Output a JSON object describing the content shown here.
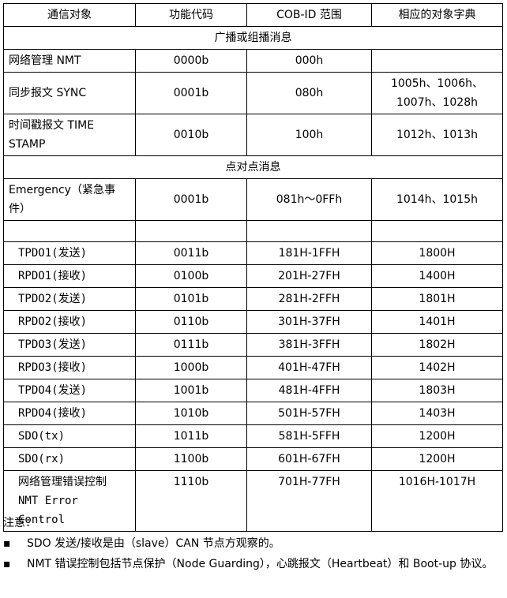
{
  "table": {
    "header": [
      "通信对象",
      "功能代码",
      "COB-ID 范围",
      "相应的对象字典"
    ],
    "sections": [
      "广播或组播消息",
      "点对点消息"
    ],
    "rows": [
      [
        "网络管理 NMT",
        "0000b",
        "000h",
        null
      ],
      [
        "同步报文 SYNC",
        "0001b",
        "080h",
        "1005h、1006h、1007h、1028h"
      ],
      [
        "时间戳报文 TIME STAMP",
        "0010b",
        "100h",
        "1012h、1013h"
      ],
      [
        "Emergency（紧急事件）",
        "0001b",
        "081h～0FFh",
        "1014h、1015h"
      ],
      [
        "TPDO1(发送)",
        "0011b",
        "181H-1FFH",
        "1800H"
      ],
      [
        "RPDO1(接收)",
        "0100b",
        "201H-27FH",
        "1400H"
      ],
      [
        "TPDO2(发送)",
        "0101b",
        "281H-2FFH",
        "1801H"
      ],
      [
        "RPDO2(接收)",
        "0110b",
        "301H-37FH",
        "1401H"
      ],
      [
        "TPDO3(发送)",
        "0111b",
        "381H-3FFH",
        "1802H"
      ],
      [
        "RPDO3(接收)",
        "1000b",
        "401H-47FH",
        "1402H"
      ],
      [
        "TPDO4(发送)",
        "1001b",
        "481H-4FFH",
        "1803H"
      ],
      [
        "RPDO4(接收)",
        "1010b",
        "501H-57FH",
        "1403H"
      ],
      [
        "SDO(tx)",
        "1011b",
        "581H-5FFH",
        "1200H"
      ],
      [
        "SDO(rx)",
        "1100b",
        "601H-67FH",
        "1200H"
      ],
      [
        "网络管理错误控制 NMT Error Control",
        "1110b",
        "701H-77FH",
        "1016H-1017H"
      ]
    ]
  },
  "notes": {
    "title": "注意：",
    "items": [
      "SDO 发送/接收是由（slave）CAN 节点方观察的。",
      "NMT 错误控制包括节点保护（Node Guarding），心跳报文（Heartbeat）和 Boot-up 协议。"
    ]
  }
}
